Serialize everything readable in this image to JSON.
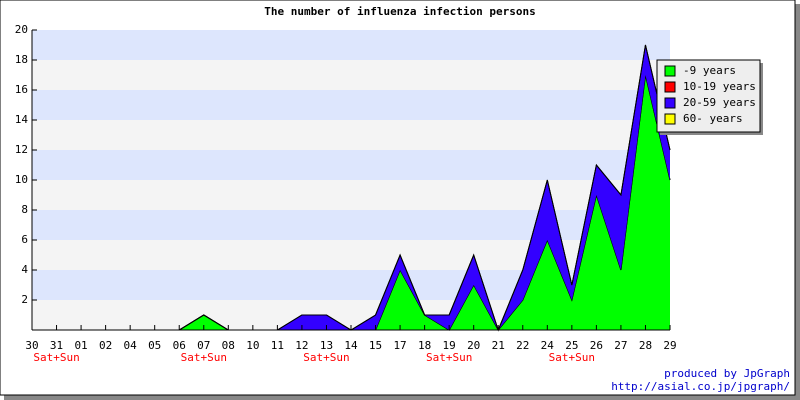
{
  "chart_data": {
    "type": "stacked_area",
    "title": "The number of influenza infection persons",
    "categories": [
      "30",
      "31",
      "01",
      "02",
      "04",
      "05",
      "06",
      "07",
      "08",
      "10",
      "11",
      "12",
      "13",
      "14",
      "15",
      "17",
      "18",
      "19",
      "20",
      "21",
      "22",
      "24",
      "25",
      "26",
      "27",
      "28",
      "29"
    ],
    "x_sublabels": [
      null,
      "Sat+Sun",
      null,
      null,
      null,
      null,
      null,
      "Sat+Sun",
      null,
      null,
      null,
      null,
      "Sat+Sun",
      null,
      null,
      null,
      null,
      "Sat+Sun",
      null,
      null,
      null,
      null,
      "Sat+Sun",
      null,
      null,
      null,
      null
    ],
    "series": [
      {
        "name": "-9 years",
        "color": "#00ff00",
        "values": [
          0,
          0,
          0,
          0,
          0,
          0,
          0,
          1,
          0,
          0,
          0,
          0,
          0,
          0,
          0,
          4,
          1,
          0,
          3,
          0,
          2,
          6,
          2,
          9,
          4,
          17,
          10
        ]
      },
      {
        "name": "10-19 years",
        "color": "#ff0000",
        "values": [
          0,
          0,
          0,
          0,
          0,
          0,
          0,
          0,
          0,
          0,
          0,
          0,
          0,
          0,
          0,
          0,
          0,
          0,
          0,
          0,
          0,
          0,
          0,
          0,
          0,
          0,
          0
        ]
      },
      {
        "name": "20-59 years",
        "color": "#3300ff",
        "values": [
          0,
          0,
          0,
          0,
          0,
          0,
          0,
          0,
          0,
          0,
          0,
          1,
          1,
          0,
          1,
          1,
          0,
          1,
          2,
          0,
          2,
          4,
          1,
          2,
          5,
          2,
          2
        ]
      },
      {
        "name": "60- years",
        "color": "#ffff00",
        "values": [
          0,
          0,
          0,
          0,
          0,
          0,
          0,
          0,
          0,
          0,
          0,
          0,
          0,
          0,
          0,
          0,
          0,
          0,
          0,
          0,
          0,
          0,
          0,
          0,
          0,
          0,
          0
        ]
      }
    ],
    "ylim": [
      0,
      20
    ],
    "yticks": [
      2,
      4,
      6,
      8,
      10,
      12,
      14,
      16,
      18,
      20
    ],
    "band_colors": [
      "#f4f4f4",
      "#dde6fd"
    ],
    "legend": "top-right",
    "credits": [
      "produced by JpGraph",
      "http://asial.co.jp/jpgraph/"
    ]
  }
}
